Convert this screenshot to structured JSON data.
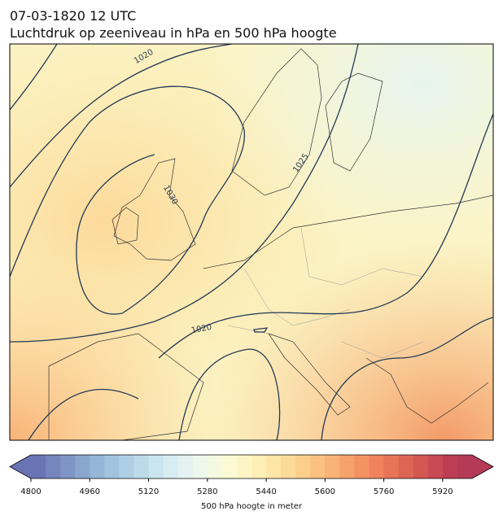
{
  "header": {
    "title": "07-03-1820 12 UTC",
    "subtitle": "Luchtdruk op zeeniveau in hPa en 500 hPa hoogte"
  },
  "map": {
    "contour_labels": [
      "1020",
      "1030",
      "1025",
      "1020"
    ]
  },
  "colorbar": {
    "label": "500 hPa hoogte in meter",
    "clim": [
      4800,
      6000
    ],
    "ticks": [
      4800,
      4960,
      5120,
      5280,
      5440,
      5600,
      5760,
      5920
    ],
    "colors": [
      "#6a74b4",
      "#7585bd",
      "#7f95c6",
      "#8aa6cf",
      "#95b6d8",
      "#a2c3de",
      "#afd0e4",
      "#bcdbea",
      "#cae5ef",
      "#d8edf2",
      "#e4f3f2",
      "#eef7ec",
      "#f5f9e0",
      "#fbfad2",
      "#fdf6c4",
      "#fdefb6",
      "#fde6a7",
      "#fcdb99",
      "#fccf8d",
      "#fbc181",
      "#f9b277",
      "#f6a26d",
      "#f39364",
      "#ee835c",
      "#e77456",
      "#de6554",
      "#d45752",
      "#c94a52",
      "#bd3e54",
      "#b53a56"
    ]
  }
}
